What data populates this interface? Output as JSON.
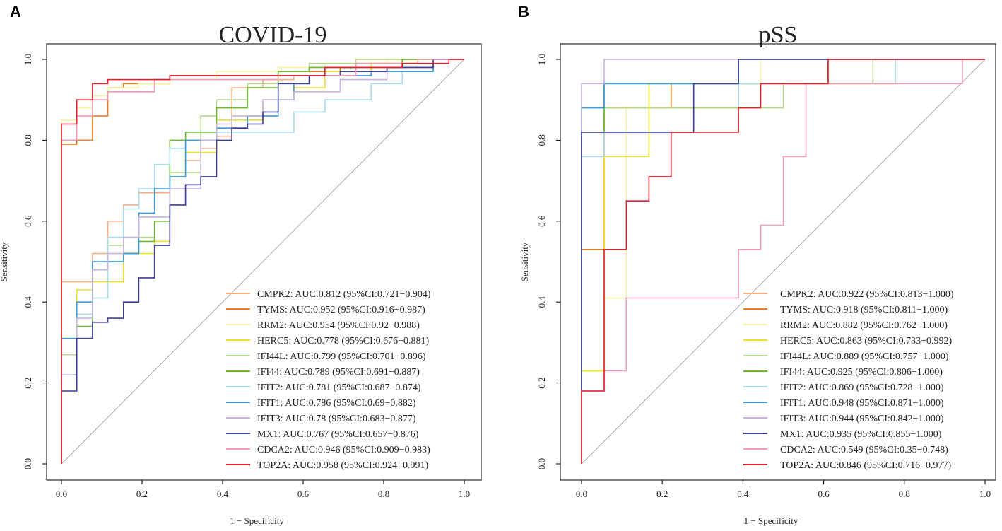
{
  "figure": {
    "colors": {
      "CMPK2": "#F5B183",
      "TYMS": "#EE7D1E",
      "RRM2": "#F7F3A0",
      "HERC5": "#EEE02C",
      "IFI44L": "#B4D88A",
      "IFI44": "#6CB82F",
      "IFIT2": "#A6DCEC",
      "IFIT1": "#3A9ADB",
      "IFIT3": "#C5B4E0",
      "MX1": "#3C3D99",
      "CDCA2": "#F39BB5",
      "TOP2A": "#E0202E",
      "diagonal": "#A8A8A8"
    }
  },
  "chart_data": [
    {
      "type": "line",
      "panel_letter": "A",
      "title": "COVID-19",
      "xlabel": "1 − Specificity",
      "ylabel": "Sensitivity",
      "xlim": [
        0,
        1
      ],
      "ylim": [
        0,
        1
      ],
      "xticks": [
        "0.0",
        "0.2",
        "0.4",
        "0.6",
        "0.8",
        "1.0"
      ],
      "yticks": [
        "0.0",
        "0.2",
        "0.4",
        "0.6",
        "0.8",
        "1.0"
      ],
      "legend_position": "bottom-right",
      "series": [
        {
          "name": "CMPK2",
          "label": "CMPK2: AUC:0.812 (95%CI:0.721−0.904)",
          "x": [
            0,
            0.038,
            0.077,
            0.115,
            0.154,
            0.192,
            0.231,
            0.269,
            0.308,
            0.346,
            0.385,
            0.423,
            0.462,
            0.5,
            0.577,
            0.654,
            0.731,
            0.808,
            0.885,
            1
          ],
          "y": [
            0,
            0.45,
            0.45,
            0.52,
            0.6,
            0.64,
            0.67,
            0.67,
            0.72,
            0.75,
            0.78,
            0.81,
            0.93,
            0.93,
            0.95,
            0.96,
            0.96,
            1,
            1,
            1
          ]
        },
        {
          "name": "TYMS",
          "label": "TYMS: AUC:0.952 (95%CI:0.916−0.987)",
          "x": [
            0,
            0.038,
            0.077,
            0.115,
            0.154,
            0.269,
            0.385,
            0.538,
            0.692,
            0.846,
            1
          ],
          "y": [
            0,
            0.79,
            0.8,
            0.86,
            0.93,
            0.94,
            0.96,
            0.96,
            0.97,
            0.98,
            1
          ]
        },
        {
          "name": "RRM2",
          "label": "RRM2: AUC:0.954 (95%CI:0.92−0.988)",
          "x": [
            0,
            0.038,
            0.077,
            0.115,
            0.192,
            0.269,
            0.385,
            0.538,
            0.654,
            0.808,
            1
          ],
          "y": [
            0,
            0.85,
            0.88,
            0.91,
            0.93,
            0.94,
            0.95,
            0.97,
            0.98,
            0.99,
            1
          ]
        },
        {
          "name": "HERC5",
          "label": "HERC5: AUC:0.778 (95%CI:0.676−0.881)",
          "x": [
            0,
            0.038,
            0.077,
            0.115,
            0.154,
            0.231,
            0.269,
            0.308,
            0.385,
            0.5,
            0.577,
            0.654,
            0.769,
            0.885,
            1
          ],
          "y": [
            0,
            0.31,
            0.43,
            0.45,
            0.45,
            0.52,
            0.55,
            0.71,
            0.77,
            0.85,
            0.9,
            0.93,
            0.97,
            0.99,
            1
          ]
        },
        {
          "name": "IFI44L",
          "label": "IFI44L: AUC:0.799 (95%CI:0.701−0.896)",
          "x": [
            0,
            0.038,
            0.077,
            0.115,
            0.154,
            0.231,
            0.269,
            0.346,
            0.385,
            0.462,
            0.538,
            0.615,
            0.731,
            0.846,
            1
          ],
          "y": [
            0,
            0.27,
            0.37,
            0.48,
            0.54,
            0.56,
            0.6,
            0.72,
            0.86,
            0.9,
            0.94,
            0.97,
            0.99,
            1,
            1
          ]
        },
        {
          "name": "IFI44",
          "label": "IFI44: AUC:0.789 (95%CI:0.691−0.887)",
          "x": [
            0,
            0.038,
            0.077,
            0.115,
            0.154,
            0.192,
            0.231,
            0.269,
            0.308,
            0.385,
            0.462,
            0.538,
            0.615,
            0.731,
            0.846,
            1
          ],
          "y": [
            0,
            0.31,
            0.34,
            0.48,
            0.5,
            0.52,
            0.55,
            0.6,
            0.8,
            0.82,
            0.88,
            0.93,
            0.97,
            0.98,
            0.99,
            1
          ]
        },
        {
          "name": "IFIT2",
          "label": "IFIT2: AUC:0.781 (95%CI:0.687−0.874)",
          "x": [
            0,
            0.038,
            0.077,
            0.115,
            0.154,
            0.192,
            0.231,
            0.269,
            0.308,
            0.385,
            0.462,
            0.577,
            0.654,
            0.769,
            0.846,
            0.923,
            1
          ],
          "y": [
            0,
            0.22,
            0.37,
            0.41,
            0.56,
            0.63,
            0.68,
            0.74,
            0.78,
            0.8,
            0.82,
            0.82,
            0.87,
            0.9,
            0.94,
            0.97,
            1
          ]
        },
        {
          "name": "IFIT1",
          "label": "IFIT1: AUC:0.786 (95%CI:0.69−0.882)",
          "x": [
            0,
            0.038,
            0.077,
            0.154,
            0.192,
            0.231,
            0.269,
            0.308,
            0.385,
            0.462,
            0.538,
            0.577,
            0.615,
            0.769,
            0.923,
            1
          ],
          "y": [
            0,
            0.31,
            0.4,
            0.5,
            0.52,
            0.62,
            0.68,
            0.71,
            0.8,
            0.83,
            0.86,
            0.9,
            0.94,
            0.96,
            0.97,
            1
          ]
        },
        {
          "name": "IFIT3",
          "label": "IFIT3: AUC:0.78 (95%CI:0.683−0.877)",
          "x": [
            0,
            0.038,
            0.077,
            0.115,
            0.154,
            0.192,
            0.231,
            0.269,
            0.308,
            0.346,
            0.385,
            0.423,
            0.5,
            0.577,
            0.692,
            0.808,
            0.923,
            1
          ],
          "y": [
            0,
            0.22,
            0.36,
            0.48,
            0.52,
            0.56,
            0.61,
            0.61,
            0.68,
            0.68,
            0.8,
            0.84,
            0.86,
            0.9,
            0.92,
            0.95,
            0.98,
            1
          ]
        },
        {
          "name": "MX1",
          "label": "MX1: AUC:0.767 (95%CI:0.657−0.876)",
          "x": [
            0,
            0.038,
            0.077,
            0.115,
            0.154,
            0.192,
            0.231,
            0.269,
            0.308,
            0.346,
            0.385,
            0.423,
            0.462,
            0.5,
            0.538,
            0.615,
            0.692,
            0.808,
            0.923,
            1
          ],
          "y": [
            0,
            0.18,
            0.31,
            0.35,
            0.36,
            0.4,
            0.46,
            0.54,
            0.64,
            0.69,
            0.71,
            0.8,
            0.83,
            0.84,
            0.87,
            0.94,
            0.96,
            0.97,
            0.98,
            1
          ]
        },
        {
          "name": "CDCA2",
          "label": "CDCA2: AUC:0.946 (95%CI:0.909−0.983)",
          "x": [
            0,
            0.038,
            0.077,
            0.115,
            0.231,
            0.269,
            0.385,
            0.538,
            0.731,
            0.885,
            1
          ],
          "y": [
            0,
            0.8,
            0.86,
            0.9,
            0.92,
            0.95,
            0.95,
            0.95,
            0.96,
            0.99,
            1
          ]
        },
        {
          "name": "TOP2A",
          "label": "TOP2A: AUC:0.958 (95%CI:0.924−0.991)",
          "x": [
            0,
            0.038,
            0.077,
            0.115,
            0.154,
            0.269,
            0.308,
            0.5,
            0.654,
            0.846,
            0.962,
            1
          ],
          "y": [
            0,
            0.84,
            0.9,
            0.94,
            0.95,
            0.95,
            0.96,
            0.96,
            0.96,
            0.98,
            0.99,
            1
          ]
        }
      ]
    },
    {
      "type": "line",
      "panel_letter": "B",
      "title": "pSS",
      "xlabel": "1 − Specificity",
      "ylabel": "Sensitivity",
      "xlim": [
        0,
        1
      ],
      "ylim": [
        0,
        1
      ],
      "xticks": [
        "0.0",
        "0.2",
        "0.4",
        "0.6",
        "0.8",
        "1.0"
      ],
      "yticks": [
        "0.0",
        "0.2",
        "0.4",
        "0.6",
        "0.8",
        "1.0"
      ],
      "legend_position": "bottom-right",
      "series": [
        {
          "name": "CMPK2",
          "label": "CMPK2: AUC:0.922 (95%CI:0.813−1.000)",
          "x": [
            0,
            0.056,
            0.111,
            0.222,
            0.389,
            0.444,
            0.556,
            0.611,
            0.778,
            0.833,
            1
          ],
          "y": [
            0,
            0.82,
            0.88,
            0.88,
            0.88,
            0.94,
            0.94,
            0.94,
            0.94,
            1,
            1
          ]
        },
        {
          "name": "TYMS",
          "label": "TYMS: AUC:0.918 (95%CI:0.811−1.000)",
          "x": [
            0,
            0.056,
            0.222,
            0.444,
            0.611,
            0.833,
            1
          ],
          "y": [
            0,
            0.53,
            0.88,
            0.94,
            0.94,
            1,
            1
          ]
        },
        {
          "name": "RRM2",
          "label": "RRM2: AUC:0.882 (95%CI:0.762−1.000)",
          "x": [
            0,
            0.056,
            0.111,
            0.167,
            0.222,
            0.444,
            0.722,
            1
          ],
          "y": [
            0,
            0.23,
            0.41,
            0.88,
            0.94,
            0.94,
            1,
            1
          ]
        },
        {
          "name": "HERC5",
          "label": "HERC5: AUC:0.863 (95%CI:0.733−0.992)",
          "x": [
            0,
            0.056,
            0.111,
            0.167,
            0.222,
            0.444,
            0.611,
            0.778,
            1
          ],
          "y": [
            0,
            0.23,
            0.76,
            0.76,
            0.94,
            0.94,
            0.94,
            0.94,
            1
          ]
        },
        {
          "name": "IFI44L",
          "label": "IFI44L: AUC:0.889 (95%CI:0.757−1.000)",
          "x": [
            0,
            0.056,
            0.278,
            0.5,
            0.722,
            0.889,
            1
          ],
          "y": [
            0,
            0.82,
            0.88,
            0.88,
            0.94,
            1,
            1
          ]
        },
        {
          "name": "IFI44",
          "label": "IFI44: AUC:0.925 (95%CI:0.806−1.000)",
          "x": [
            0,
            0.056,
            0.278,
            0.444,
            0.611,
            0.889,
            1
          ],
          "y": [
            0,
            0.82,
            0.94,
            0.94,
            0.94,
            1,
            1
          ]
        },
        {
          "name": "IFIT2",
          "label": "IFIT2: AUC:0.869 (95%CI:0.728−1.000)",
          "x": [
            0,
            0.056,
            0.111,
            0.389,
            0.556,
            0.778,
            1
          ],
          "y": [
            0,
            0.76,
            0.82,
            0.82,
            0.94,
            0.94,
            1
          ]
        },
        {
          "name": "IFIT1",
          "label": "IFIT1: AUC:0.948 (95%CI:0.871−1.000)",
          "x": [
            0,
            0.056,
            0.333,
            0.389,
            0.556,
            1
          ],
          "y": [
            0,
            0.88,
            0.94,
            0.94,
            1,
            1
          ]
        },
        {
          "name": "IFIT3",
          "label": "IFIT3: AUC:0.944 (95%CI:0.842−1.000)",
          "x": [
            0,
            0.056,
            0.889,
            1
          ],
          "y": [
            0,
            0.94,
            1,
            1
          ]
        },
        {
          "name": "MX1",
          "label": "MX1: AUC:0.935 (95%CI:0.855−1.000)",
          "x": [
            0,
            0.278,
            0.389,
            0.444,
            1
          ],
          "y": [
            0,
            0.82,
            0.94,
            1,
            1
          ]
        },
        {
          "name": "CDCA2",
          "label": "CDCA2: AUC:0.549 (95%CI:0.35−0.748)",
          "x": [
            0,
            0.056,
            0.111,
            0.389,
            0.444,
            0.5,
            0.556,
            0.778,
            0.944,
            1
          ],
          "y": [
            0,
            0.18,
            0.23,
            0.41,
            0.53,
            0.59,
            0.76,
            0.94,
            0.94,
            1
          ]
        },
        {
          "name": "TOP2A",
          "label": "TOP2A: AUC:0.846 (95%CI:0.716−0.977)",
          "x": [
            0,
            0.056,
            0.111,
            0.167,
            0.222,
            0.389,
            0.444,
            0.611,
            1
          ],
          "y": [
            0,
            0.18,
            0.53,
            0.65,
            0.71,
            0.82,
            0.88,
            0.94,
            1
          ]
        }
      ]
    }
  ]
}
